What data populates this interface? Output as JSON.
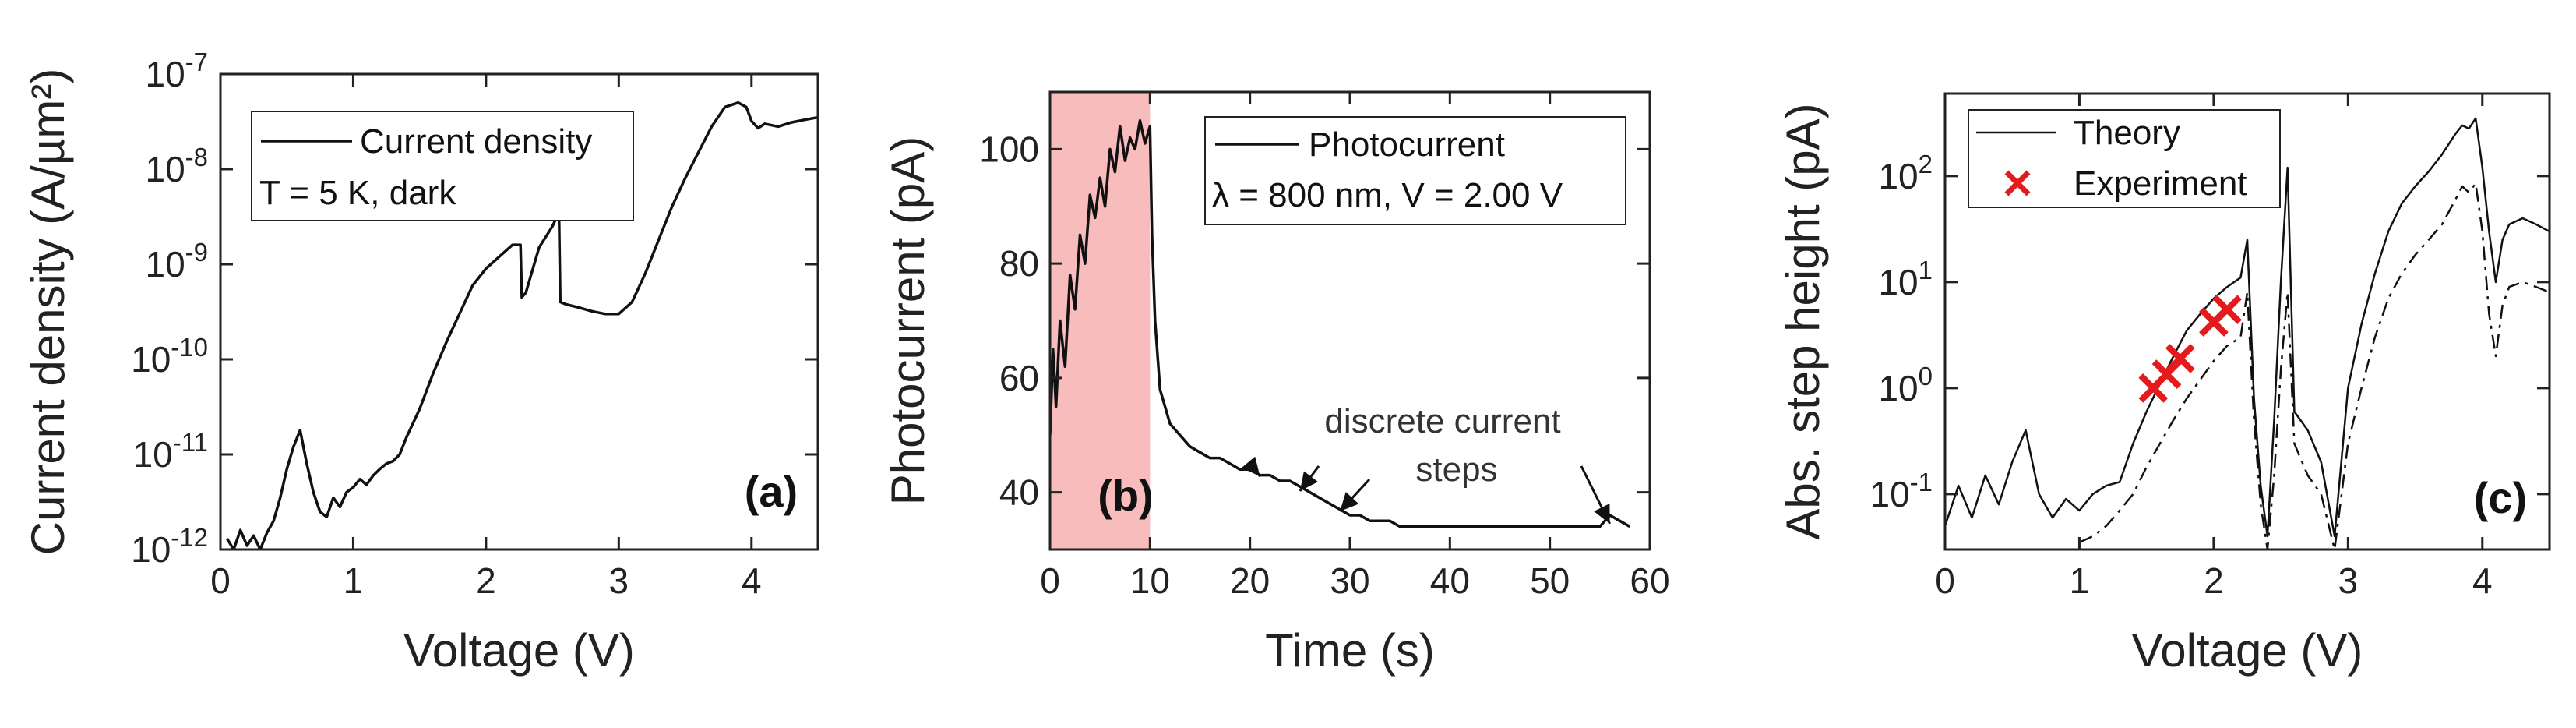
{
  "chart_data": [
    {
      "type": "line",
      "panel": "(a)",
      "xlabel": "Voltage (V)",
      "ylabel": "Current density (A/µm²)",
      "yscale": "log",
      "xlim": [
        0,
        4.5
      ],
      "ylim": [
        1e-12,
        1e-07
      ],
      "xticks": [
        0,
        1,
        2,
        3,
        4
      ],
      "xtick_labels": [
        "0",
        "1",
        "2",
        "3",
        "4"
      ],
      "yticks": [
        1e-12,
        1e-11,
        1e-10,
        1e-09,
        1e-08,
        1e-07
      ],
      "ytick_labels": [
        {
          "base": "10",
          "exp": "-12"
        },
        {
          "base": "10",
          "exp": "-11"
        },
        {
          "base": "10",
          "exp": "-10"
        },
        {
          "base": "10",
          "exp": "-9"
        },
        {
          "base": "10",
          "exp": "-8"
        },
        {
          "base": "10",
          "exp": "-7"
        }
      ],
      "legend": [
        "Current density",
        "T = 5 K, dark"
      ],
      "series": [
        {
          "name": "Current density",
          "x": [
            0.05,
            0.1,
            0.15,
            0.2,
            0.25,
            0.3,
            0.35,
            0.4,
            0.45,
            0.5,
            0.55,
            0.6,
            0.65,
            0.7,
            0.75,
            0.8,
            0.85,
            0.9,
            0.95,
            1.0,
            1.05,
            1.1,
            1.15,
            1.2,
            1.25,
            1.3,
            1.35,
            1.4,
            1.5,
            1.6,
            1.7,
            1.8,
            1.9,
            2.0,
            2.1,
            2.2,
            2.26,
            2.27,
            2.3,
            2.4,
            2.5,
            2.55,
            2.56,
            2.6,
            2.7,
            2.8,
            2.9,
            3.0,
            3.1,
            3.2,
            3.3,
            3.4,
            3.5,
            3.6,
            3.7,
            3.8,
            3.9,
            3.96,
            4.0,
            4.05,
            4.1,
            4.2,
            4.3,
            4.4,
            4.5
          ],
          "y": [
            1.3e-12,
            1e-12,
            1.6e-12,
            1.1e-12,
            1.4e-12,
            1e-12,
            1.5e-12,
            2e-12,
            3.5e-12,
            7e-12,
            1.2e-11,
            1.8e-11,
            8e-12,
            4e-12,
            2.5e-12,
            2.2e-12,
            3.5e-12,
            2.8e-12,
            4e-12,
            4.5e-12,
            5.5e-12,
            4.8e-12,
            6e-12,
            7e-12,
            8e-12,
            8.5e-12,
            1e-11,
            1.5e-11,
            3e-11,
            7e-11,
            1.5e-10,
            3e-10,
            6e-10,
            9e-10,
            1.2e-09,
            1.6e-09,
            1.6e-09,
            4.5e-10,
            5e-10,
            1.5e-09,
            2.5e-09,
            3.5e-09,
            4e-10,
            3.8e-10,
            3.5e-10,
            3.2e-10,
            3e-10,
            3e-10,
            4e-10,
            8e-10,
            1.8e-09,
            4e-09,
            8e-09,
            1.5e-08,
            2.8e-08,
            4.5e-08,
            5e-08,
            4.5e-08,
            3.2e-08,
            2.7e-08,
            3e-08,
            2.8e-08,
            3.1e-08,
            3.3e-08,
            3.5e-08
          ]
        }
      ]
    },
    {
      "type": "line",
      "panel": "(b)",
      "xlabel": "Time (s)",
      "ylabel": "Photocurrent (pA)",
      "xlim": [
        0,
        60
      ],
      "ylim": [
        30,
        110
      ],
      "xticks": [
        0,
        10,
        20,
        30,
        40,
        50,
        60
      ],
      "xtick_labels": [
        "0",
        "10",
        "20",
        "30",
        "40",
        "50",
        "60"
      ],
      "yticks": [
        40,
        60,
        80,
        100
      ],
      "ytick_labels": [
        "40",
        "60",
        "80",
        "100"
      ],
      "shaded_region": [
        0,
        10
      ],
      "shade_color": "#f8bcbc",
      "legend": [
        "Photocurrent",
        "λ = 800 nm, V = 2.00 V"
      ],
      "annotation_lines": [
        "discrete current",
        "steps"
      ],
      "step_times": [
        21,
        25,
        29,
        56
      ],
      "series": [
        {
          "name": "Photocurrent",
          "x": [
            0,
            0.3,
            0.6,
            1,
            1.5,
            2,
            2.5,
            3,
            3.5,
            4,
            4.5,
            5,
            5.5,
            6,
            6.5,
            7,
            7.5,
            8,
            8.5,
            9,
            9.5,
            10,
            10.2,
            10.5,
            11,
            12,
            13,
            14,
            15,
            16,
            17,
            18,
            19,
            20,
            21,
            22,
            23,
            24,
            25,
            26,
            27,
            28,
            29,
            30,
            31,
            32,
            33,
            34,
            35,
            36,
            38,
            40,
            42,
            44,
            46,
            48,
            50,
            52,
            54,
            55,
            56,
            57,
            58
          ],
          "y": [
            50,
            65,
            55,
            70,
            62,
            78,
            72,
            85,
            80,
            92,
            88,
            95,
            90,
            100,
            96,
            104,
            98,
            102,
            100,
            105,
            101,
            104,
            85,
            70,
            58,
            52,
            50,
            48,
            47,
            46,
            46,
            45,
            44,
            44,
            43,
            43,
            42,
            42,
            41,
            40,
            39,
            38,
            37,
            36,
            36,
            35,
            35,
            35,
            34,
            34,
            34,
            34,
            34,
            34,
            34,
            34,
            34,
            34,
            34,
            34,
            36,
            35,
            34
          ]
        }
      ]
    },
    {
      "type": "line",
      "panel": "(c)",
      "xlabel": "Voltage (V)",
      "ylabel": "Abs. step height (pA)",
      "yscale": "log",
      "xlim": [
        0,
        4.5
      ],
      "ylim": [
        0.03,
        600
      ],
      "xticks": [
        0,
        1,
        2,
        3,
        4
      ],
      "xtick_labels": [
        "0",
        "1",
        "2",
        "3",
        "4"
      ],
      "yticks": [
        0.1,
        1,
        10,
        100
      ],
      "ytick_labels": [
        {
          "base": "10",
          "exp": "-1"
        },
        {
          "base": "10",
          "exp": "0"
        },
        {
          "base": "10",
          "exp": "1"
        },
        {
          "base": "10",
          "exp": "2"
        }
      ],
      "tick_label_0": "0",
      "legend": [
        "Theory",
        "Experiment"
      ],
      "series": [
        {
          "name": "Theory",
          "style": "solid",
          "x": [
            0,
            0.1,
            0.2,
            0.3,
            0.4,
            0.5,
            0.6,
            0.7,
            0.8,
            0.9,
            1.0,
            1.1,
            1.2,
            1.3,
            1.4,
            1.5,
            1.6,
            1.7,
            1.8,
            1.9,
            2.0,
            2.1,
            2.2,
            2.25,
            2.3,
            2.35,
            2.4,
            2.45,
            2.5,
            2.55,
            2.6,
            2.7,
            2.8,
            2.9,
            3.0,
            3.1,
            3.2,
            3.3,
            3.4,
            3.5,
            3.6,
            3.7,
            3.8,
            3.85,
            3.9,
            3.95,
            4.0,
            4.05,
            4.1,
            4.15,
            4.2,
            4.3,
            4.4,
            4.5
          ],
          "y": [
            0.05,
            0.12,
            0.06,
            0.15,
            0.08,
            0.2,
            0.4,
            0.1,
            0.06,
            0.09,
            0.07,
            0.1,
            0.12,
            0.13,
            0.3,
            0.6,
            1.1,
            2,
            3.5,
            5,
            7,
            9,
            11,
            25,
            0.8,
            0.12,
            0.04,
            0.5,
            10,
            120,
            0.6,
            0.4,
            0.2,
            0.04,
            1,
            4,
            12,
            30,
            55,
            80,
            110,
            160,
            250,
            300,
            280,
            350,
            120,
            30,
            10,
            25,
            35,
            40,
            35,
            30
          ]
        },
        {
          "name": "Theory (dash-dot)",
          "style": "dashdot",
          "x": [
            1.0,
            1.1,
            1.2,
            1.3,
            1.4,
            1.5,
            1.6,
            1.7,
            1.8,
            1.9,
            2.0,
            2.1,
            2.2,
            2.25,
            2.3,
            2.35,
            2.4,
            2.45,
            2.5,
            2.55,
            2.6,
            2.7,
            2.8,
            2.9,
            3.0,
            3.1,
            3.2,
            3.3,
            3.4,
            3.5,
            3.6,
            3.7,
            3.8,
            3.85,
            3.9,
            3.95,
            4.0,
            4.05,
            4.1,
            4.15,
            4.2,
            4.3,
            4.4,
            4.5
          ],
          "y": [
            0.035,
            0.04,
            0.05,
            0.07,
            0.1,
            0.18,
            0.3,
            0.5,
            0.8,
            1.2,
            1.8,
            2.5,
            3,
            8,
            0.5,
            0.08,
            0.03,
            0.15,
            1.5,
            8,
            0.3,
            0.15,
            0.1,
            0.03,
            0.3,
            1,
            3,
            7,
            12,
            18,
            25,
            35,
            60,
            80,
            70,
            85,
            30,
            5,
            2,
            6,
            9,
            10,
            9,
            8
          ]
        },
        {
          "name": "Experiment",
          "style": "markers",
          "color": "#e41a1c",
          "x": [
            1.55,
            1.65,
            1.75,
            2.0,
            2.1
          ],
          "y": [
            1.0,
            1.35,
            1.9,
            4.2,
            5.5
          ]
        }
      ]
    }
  ]
}
